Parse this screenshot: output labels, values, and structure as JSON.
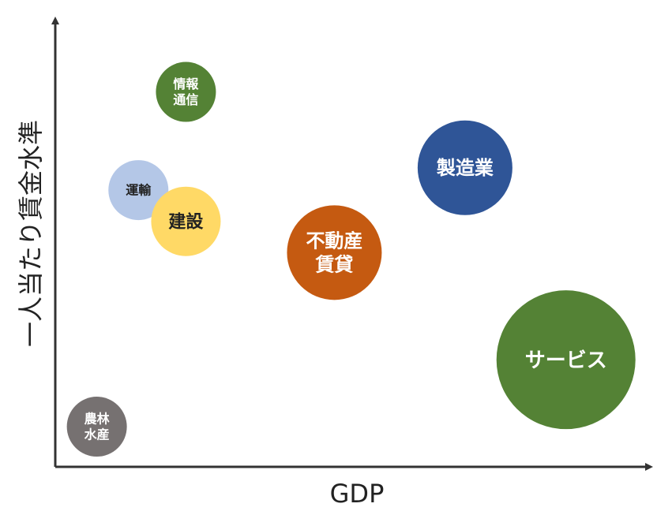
{
  "chart_data": {
    "type": "scatter",
    "xlabel": "GDP",
    "ylabel": "一人当たり賃金水準",
    "grid": false,
    "legend": "none",
    "xlim": [
      0,
      100
    ],
    "ylim": [
      0,
      100
    ],
    "points": [
      {
        "label": [
          "情報",
          "通信"
        ],
        "x": 22,
        "y": 84,
        "size": 38,
        "color": "#548235",
        "text_color": "#ffffff"
      },
      {
        "label": [
          "製造業"
        ],
        "x": 69,
        "y": 67,
        "size": 60,
        "color": "#2f5597",
        "text_color": "#ffffff"
      },
      {
        "label": [
          "運輸"
        ],
        "x": 14,
        "y": 62,
        "size": 38,
        "color": "#b4c7e7",
        "text_color": "#222222"
      },
      {
        "label": [
          "建設"
        ],
        "x": 22,
        "y": 55,
        "size": 44,
        "color": "#ffd966",
        "text_color": "#222222"
      },
      {
        "label": [
          "不動産",
          "賃貸"
        ],
        "x": 47,
        "y": 48,
        "size": 60,
        "color": "#c55a11",
        "text_color": "#ffffff"
      },
      {
        "label": [
          "サービス"
        ],
        "x": 86,
        "y": 24,
        "size": 88,
        "color": "#548235",
        "text_color": "#ffffff"
      },
      {
        "label": [
          "農林",
          "水産"
        ],
        "x": 7,
        "y": 9,
        "size": 38,
        "color": "#767171",
        "text_color": "#ffffff"
      }
    ]
  }
}
